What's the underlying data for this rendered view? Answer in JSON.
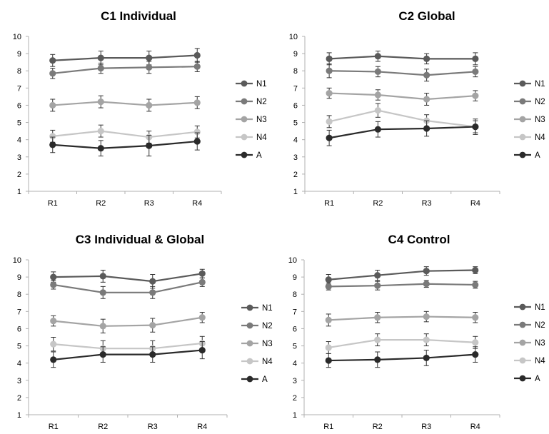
{
  "chart_data": [
    {
      "type": "line",
      "title": "C1 Individual",
      "categories": [
        "R1",
        "R2",
        "R3",
        "R4"
      ],
      "ylim": [
        1,
        10
      ],
      "yticks": [
        1,
        2,
        3,
        4,
        5,
        6,
        7,
        8,
        9,
        10
      ],
      "ytick_labels": [
        "1",
        "2",
        "3",
        "4",
        "5",
        "6",
        "7",
        "8",
        "9",
        "10"
      ],
      "legend_position": "right",
      "grid": false,
      "series": [
        {
          "name": "N1",
          "color": "#5a5a5a",
          "values": [
            8.6,
            8.75,
            8.75,
            8.9
          ],
          "errors": [
            0.35,
            0.4,
            0.4,
            0.4
          ]
        },
        {
          "name": "N2",
          "color": "#7a7a7a",
          "values": [
            7.85,
            8.15,
            8.2,
            8.25
          ],
          "errors": [
            0.3,
            0.3,
            0.35,
            0.3
          ]
        },
        {
          "name": "N3",
          "color": "#a4a4a4",
          "values": [
            6.0,
            6.2,
            6.0,
            6.15
          ],
          "errors": [
            0.35,
            0.35,
            0.35,
            0.35
          ]
        },
        {
          "name": "N4",
          "color": "#c6c6c6",
          "values": [
            4.2,
            4.5,
            4.15,
            4.45
          ],
          "errors": [
            0.35,
            0.35,
            0.35,
            0.35
          ]
        },
        {
          "name": "A",
          "color": "#2a2a2a",
          "values": [
            3.7,
            3.5,
            3.65,
            3.9
          ],
          "errors": [
            0.45,
            0.45,
            0.6,
            0.5
          ]
        }
      ]
    },
    {
      "type": "line",
      "title": "C2 Global",
      "categories": [
        "R1",
        "R2",
        "R3",
        "R4"
      ],
      "ylim": [
        1,
        10
      ],
      "yticks": [
        1,
        2,
        3,
        4,
        5,
        6,
        7,
        8,
        9,
        10
      ],
      "ytick_labels": [
        "1",
        "2",
        "3",
        "4",
        "5",
        "6",
        "7",
        "8",
        "9",
        "10"
      ],
      "legend_position": "right",
      "grid": false,
      "series": [
        {
          "name": "N1",
          "color": "#5a5a5a",
          "values": [
            8.7,
            8.85,
            8.7,
            8.7
          ],
          "errors": [
            0.35,
            0.3,
            0.3,
            0.35
          ]
        },
        {
          "name": "N2",
          "color": "#7a7a7a",
          "values": [
            8.0,
            7.95,
            7.75,
            7.95
          ],
          "errors": [
            0.4,
            0.3,
            0.35,
            0.3
          ]
        },
        {
          "name": "N3",
          "color": "#a4a4a4",
          "values": [
            6.7,
            6.6,
            6.35,
            6.55
          ],
          "errors": [
            0.3,
            0.3,
            0.35,
            0.3
          ]
        },
        {
          "name": "N4",
          "color": "#c6c6c6",
          "values": [
            5.05,
            5.7,
            5.1,
            4.75
          ],
          "errors": [
            0.35,
            0.4,
            0.35,
            0.35
          ]
        },
        {
          "name": "A",
          "color": "#2a2a2a",
          "values": [
            4.1,
            4.6,
            4.65,
            4.75
          ],
          "errors": [
            0.45,
            0.45,
            0.45,
            0.45
          ]
        }
      ]
    },
    {
      "type": "line",
      "title": "C3 Individual & Global",
      "categories": [
        "R1",
        "R2",
        "R3",
        "R4"
      ],
      "ylim": [
        1,
        10
      ],
      "yticks": [
        1,
        2,
        3,
        4,
        5,
        6,
        7,
        8,
        9,
        10
      ],
      "ytick_labels": [
        "1",
        "2",
        "3",
        "4",
        "5",
        "6",
        "7",
        "8",
        "9",
        "10"
      ],
      "legend_position": "right",
      "grid": false,
      "series": [
        {
          "name": "N1",
          "color": "#5a5a5a",
          "values": [
            9.0,
            9.05,
            8.75,
            9.2
          ],
          "errors": [
            0.3,
            0.35,
            0.4,
            0.25
          ]
        },
        {
          "name": "N2",
          "color": "#7a7a7a",
          "values": [
            8.55,
            8.1,
            8.1,
            8.7
          ],
          "errors": [
            0.25,
            0.35,
            0.35,
            0.25
          ]
        },
        {
          "name": "N3",
          "color": "#a4a4a4",
          "values": [
            6.45,
            6.15,
            6.2,
            6.65
          ],
          "errors": [
            0.3,
            0.4,
            0.4,
            0.3
          ]
        },
        {
          "name": "N4",
          "color": "#c6c6c6",
          "values": [
            5.1,
            4.85,
            4.85,
            5.15
          ],
          "errors": [
            0.4,
            0.45,
            0.45,
            0.4
          ]
        },
        {
          "name": "A",
          "color": "#2a2a2a",
          "values": [
            4.2,
            4.5,
            4.5,
            4.75
          ],
          "errors": [
            0.45,
            0.45,
            0.45,
            0.5
          ]
        }
      ]
    },
    {
      "type": "line",
      "title": "C4 Control",
      "categories": [
        "R1",
        "R2",
        "R3",
        "R4"
      ],
      "ylim": [
        1,
        10
      ],
      "yticks": [
        1,
        2,
        3,
        4,
        5,
        6,
        7,
        8,
        9,
        10
      ],
      "ytick_labels": [
        "1",
        "2",
        "3",
        "4",
        "5",
        "6",
        "7",
        "8",
        "9",
        "10"
      ],
      "legend_position": "right",
      "grid": false,
      "series": [
        {
          "name": "N1",
          "color": "#5a5a5a",
          "values": [
            8.85,
            9.1,
            9.35,
            9.4
          ],
          "errors": [
            0.3,
            0.3,
            0.25,
            0.2
          ]
        },
        {
          "name": "N2",
          "color": "#7a7a7a",
          "values": [
            8.45,
            8.5,
            8.6,
            8.55
          ],
          "errors": [
            0.2,
            0.25,
            0.2,
            0.2
          ]
        },
        {
          "name": "N3",
          "color": "#a4a4a4",
          "values": [
            6.5,
            6.65,
            6.7,
            6.65
          ],
          "errors": [
            0.35,
            0.3,
            0.3,
            0.3
          ]
        },
        {
          "name": "N4",
          "color": "#c6c6c6",
          "values": [
            4.9,
            5.35,
            5.35,
            5.2
          ],
          "errors": [
            0.35,
            0.35,
            0.35,
            0.35
          ]
        },
        {
          "name": "A",
          "color": "#2a2a2a",
          "values": [
            4.15,
            4.2,
            4.3,
            4.5
          ],
          "errors": [
            0.4,
            0.45,
            0.45,
            0.45
          ]
        }
      ]
    }
  ]
}
